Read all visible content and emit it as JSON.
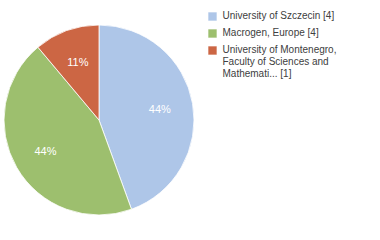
{
  "chart_data": {
    "type": "pie",
    "categories": [
      "University of Szczecin [4]",
      "Macrogen, Europe [4]",
      "University of Montenegro,\nFaculty of Sciences and\nMathemati... [1]"
    ],
    "values": [
      44,
      44,
      11
    ],
    "value_labels": [
      "44%",
      "44%",
      "11%"
    ],
    "colors": [
      "#aec6e8",
      "#9dbf6e",
      "#cc6644"
    ],
    "data_labels": true,
    "legend": "right"
  }
}
